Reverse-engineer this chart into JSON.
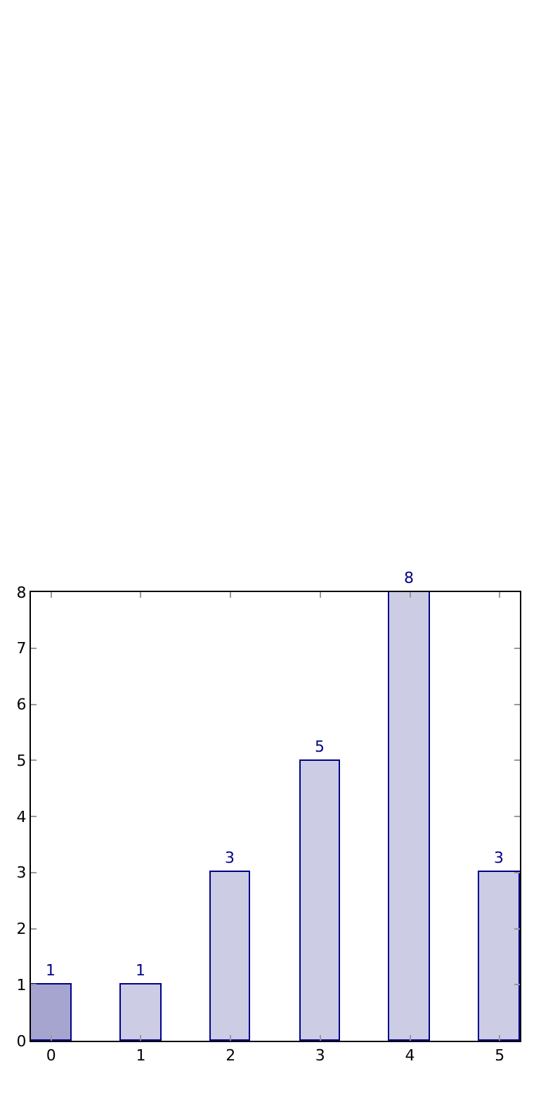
{
  "chart_data": {
    "type": "bar",
    "x": [
      0,
      1,
      2,
      3,
      4,
      5
    ],
    "values": [
      1,
      1,
      3,
      5,
      8,
      3
    ],
    "colors": [
      "#a5a5d0",
      "#ccccE4",
      "#ccccE4",
      "#ccccE4",
      "#ccccE4",
      "#ccccE4"
    ],
    "data_labels": true,
    "xlim": [
      -0.225,
      5.225
    ],
    "xticks": [
      0,
      1,
      2,
      3,
      4,
      5
    ],
    "ylim": [
      0,
      8
    ],
    "yticks": [
      0,
      1,
      2,
      3,
      4,
      5,
      6,
      7,
      8
    ],
    "legend": false
  }
}
